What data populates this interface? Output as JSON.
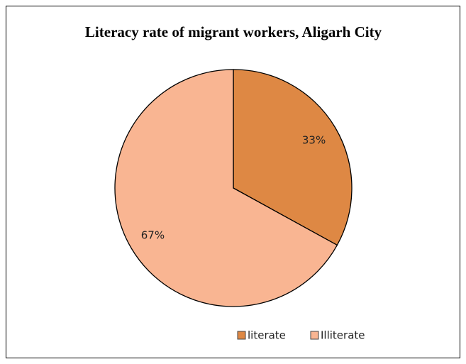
{
  "chart_data": {
    "type": "pie",
    "title": "Literacy rate of migrant workers, Aligarh City",
    "categories": [
      "literate",
      "Illiterate"
    ],
    "values": [
      33,
      67
    ],
    "value_labels": [
      "33%",
      "67%"
    ],
    "colors": [
      "#de8844",
      "#f9b592"
    ],
    "legend": "bottom"
  }
}
